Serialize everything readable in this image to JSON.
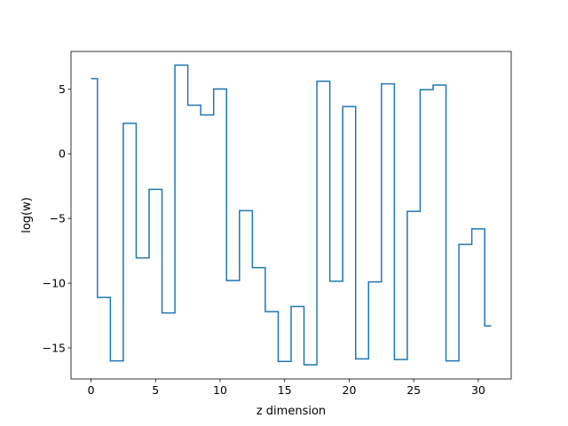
{
  "chart_data": {
    "type": "line",
    "drawstyle": "steps-mid",
    "title": "",
    "xlabel": "z dimension",
    "ylabel": "log(w)",
    "xlim": [
      -1.55,
      32.55
    ],
    "ylim": [
      -17.4,
      7.9
    ],
    "xticks": [
      0,
      5,
      10,
      15,
      20,
      25,
      30
    ],
    "yticks": [
      -15,
      -10,
      -5,
      0,
      5
    ],
    "grid": false,
    "legend": "none",
    "color": "#1f77b4",
    "series": [
      {
        "x": [
          0,
          1,
          2,
          3,
          4,
          5,
          6,
          7,
          8,
          9,
          10,
          11,
          12,
          13,
          14,
          15,
          16,
          17,
          18,
          19,
          20,
          21,
          22,
          23,
          24,
          25,
          26,
          27,
          28,
          29,
          30,
          31
        ],
        "y": [
          5.8,
          -11.1,
          -16.0,
          2.35,
          -8.05,
          -2.75,
          -12.3,
          6.85,
          3.75,
          3.0,
          5.0,
          -9.8,
          -4.4,
          -8.8,
          -12.2,
          -16.05,
          -11.8,
          -16.3,
          5.6,
          -9.85,
          3.65,
          -15.85,
          -9.9,
          5.4,
          -15.9,
          -4.45,
          4.95,
          5.3,
          -16.0,
          -7.0,
          -5.8,
          -13.3
        ]
      }
    ]
  }
}
